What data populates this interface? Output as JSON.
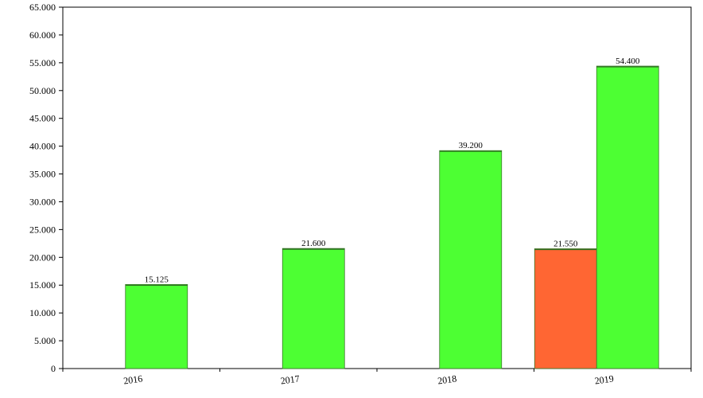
{
  "chart_data": {
    "type": "bar",
    "title": "",
    "xlabel": "",
    "ylabel": "",
    "ylim": [
      0,
      65000
    ],
    "y_ticks": [
      0,
      5000,
      10000,
      15000,
      20000,
      25000,
      30000,
      35000,
      40000,
      45000,
      50000,
      55000,
      60000,
      65000
    ],
    "y_tick_labels": [
      "0",
      "5.000",
      "10.000",
      "15.000",
      "20.000",
      "25.000",
      "30.000",
      "35.000",
      "40.000",
      "45.000",
      "50.000",
      "55.000",
      "60.000",
      "65.000"
    ],
    "categories": [
      "2016",
      "2017",
      "2018",
      "2019"
    ],
    "series": [
      {
        "color": "#ff6633",
        "values": [
          null,
          null,
          null,
          21550
        ],
        "data_labels": [
          "",
          "",
          "",
          "21.550"
        ]
      },
      {
        "color": "#4dff33",
        "values": [
          15125,
          21600,
          39200,
          54400
        ],
        "data_labels": [
          "15.125",
          "21.600",
          "39.200",
          "54.400"
        ]
      }
    ],
    "grid": false,
    "legend": "none"
  }
}
